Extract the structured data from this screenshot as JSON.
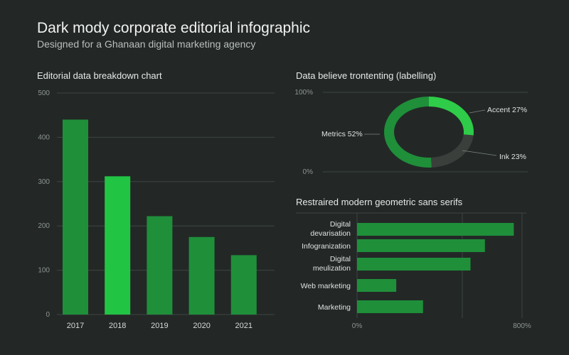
{
  "header": {
    "title": "Dark mody corporate editorial infographic",
    "subtitle": "Designed for a Ghanaan digital marketing agency"
  },
  "colors": {
    "bar_dark": "#1f8f3a",
    "bar_bright": "#22c444",
    "donut_light": "#2ecc48",
    "donut_mid": "#1f8f3a",
    "donut_dark": "#3a3f3c",
    "hbar": "#1f8f3a"
  },
  "chart_data": [
    {
      "type": "bar",
      "title": "Editorial data breakdown chart",
      "categories": [
        "2017",
        "2018",
        "2019",
        "2020",
        "2021"
      ],
      "values": [
        440,
        312,
        222,
        175,
        134
      ],
      "highlight_index": 1,
      "ylim": [
        0,
        500
      ],
      "yticks": [
        "500",
        "400",
        "300",
        "200",
        "100",
        "0"
      ],
      "grid": true
    },
    {
      "type": "pie",
      "title": "Data believe trontenting (labelling)",
      "axis_labels": [
        "100%",
        "0%"
      ],
      "slices": [
        {
          "label": "Accent 27%",
          "value": 27
        },
        {
          "label": "Ink 23%",
          "value": 23
        },
        {
          "label": "Metrics 52%",
          "value": 52
        }
      ]
    },
    {
      "type": "bar",
      "orientation": "horizontal",
      "title": "Restraired modern geometric sans serifs",
      "categories": [
        [
          "Digital",
          "devarisation"
        ],
        [
          "Infogranization"
        ],
        [
          "Digital",
          "meulization"
        ],
        [
          "Web marketing"
        ],
        [
          "Marketing"
        ]
      ],
      "values": [
        760,
        620,
        550,
        190,
        320
      ],
      "xlim": [
        0,
        850
      ],
      "xticks": [
        "0%",
        "800%"
      ],
      "grid": true
    }
  ]
}
